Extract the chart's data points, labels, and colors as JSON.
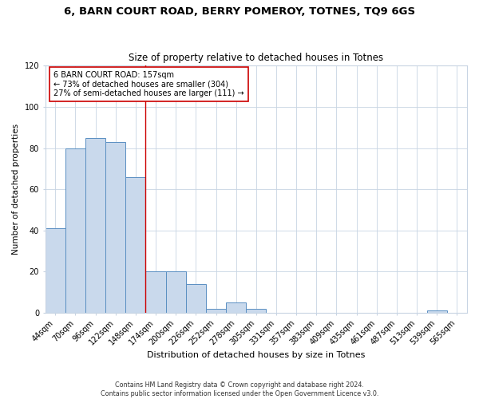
{
  "title": "6, BARN COURT ROAD, BERRY POMEROY, TOTNES, TQ9 6GS",
  "subtitle": "Size of property relative to detached houses in Totnes",
  "xlabel": "Distribution of detached houses by size in Totnes",
  "ylabel": "Number of detached properties",
  "bar_labels": [
    "44sqm",
    "70sqm",
    "96sqm",
    "122sqm",
    "148sqm",
    "174sqm",
    "200sqm",
    "226sqm",
    "252sqm",
    "278sqm",
    "305sqm",
    "331sqm",
    "357sqm",
    "383sqm",
    "409sqm",
    "435sqm",
    "461sqm",
    "487sqm",
    "513sqm",
    "539sqm",
    "565sqm"
  ],
  "bar_values": [
    41,
    80,
    85,
    83,
    66,
    20,
    20,
    14,
    2,
    5,
    2,
    0,
    0,
    0,
    0,
    0,
    0,
    0,
    0,
    1,
    0
  ],
  "bar_color": "#c9d9ec",
  "bar_edge_color": "#5a8fc2",
  "property_line_x": 4.5,
  "annotation_line1": "6 BARN COURT ROAD: 157sqm",
  "annotation_line2": "← 73% of detached houses are smaller (304)",
  "annotation_line3": "27% of semi-detached houses are larger (111) →",
  "annotation_box_color": "#ffffff",
  "annotation_box_edge_color": "#cc0000",
  "red_line_color": "#cc0000",
  "ylim": [
    0,
    120
  ],
  "title_fontsize": 9.5,
  "subtitle_fontsize": 8.5,
  "xlabel_fontsize": 8,
  "ylabel_fontsize": 7.5,
  "tick_fontsize": 7,
  "annot_fontsize": 7,
  "footer_line1": "Contains HM Land Registry data © Crown copyright and database right 2024.",
  "footer_line2": "Contains public sector information licensed under the Open Government Licence v3.0."
}
